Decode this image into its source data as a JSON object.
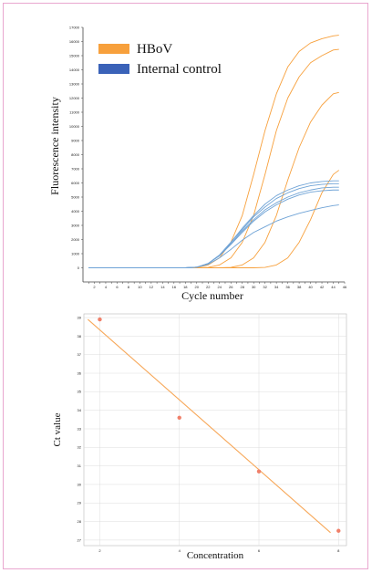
{
  "chart_data": [
    {
      "type": "line",
      "title": "",
      "xlabel": "Cycle number",
      "ylabel": "Fluorescence intensity",
      "xlim": [
        0,
        46
      ],
      "ylim": [
        -1000,
        17000
      ],
      "x_ticks": [
        1,
        2,
        3,
        4,
        5,
        6,
        7,
        8,
        9,
        10,
        11,
        12,
        13,
        14,
        15,
        16,
        17,
        18,
        19,
        20,
        21,
        22,
        23,
        24,
        25,
        26,
        27,
        28,
        29,
        30,
        31,
        32,
        33,
        34,
        35,
        36,
        37,
        38,
        39,
        40,
        41,
        42,
        43,
        44,
        45,
        46
      ],
      "y_ticks": [
        0,
        1000,
        2000,
        3000,
        4000,
        5000,
        6000,
        7000,
        8000,
        9000,
        10000,
        11000,
        12000,
        13000,
        14000,
        15000,
        16000,
        17000
      ],
      "x_tick_labels": [
        "2",
        "4",
        "6",
        "8",
        "10",
        "12",
        "14",
        "16",
        "18",
        "20",
        "22",
        "24",
        "26",
        "28",
        "30",
        "32",
        "34",
        "36",
        "38",
        "40",
        "42",
        "44",
        "46"
      ],
      "y_tick_labels": [
        "0",
        "1000",
        "2000",
        "3000",
        "4000",
        "5000",
        "6000",
        "7000",
        "8000",
        "9000",
        "10000",
        "11000",
        "12000",
        "13000",
        "14000",
        "15000",
        "16000",
        "17000"
      ],
      "legend_position": "top-left",
      "legend": [
        {
          "label": "HBoV",
          "color": "#f7a03c"
        },
        {
          "label": "Internal control",
          "color": "#3a62b8"
        }
      ],
      "series": [
        {
          "group": "HBoV",
          "color": "#f7a03c",
          "x": [
            1,
            18,
            20,
            22,
            24,
            26,
            28,
            30,
            32,
            34,
            36,
            38,
            40,
            42,
            44,
            45
          ],
          "y": [
            0,
            0,
            30,
            200,
            700,
            1800,
            3700,
            6600,
            9700,
            12300,
            14200,
            15300,
            15900,
            16200,
            16400,
            16450
          ]
        },
        {
          "group": "HBoV",
          "color": "#f7a03c",
          "x": [
            1,
            20,
            22,
            24,
            26,
            28,
            30,
            32,
            34,
            36,
            38,
            40,
            42,
            44,
            45
          ],
          "y": [
            0,
            0,
            30,
            200,
            700,
            1800,
            3700,
            6600,
            9700,
            12000,
            13500,
            14500,
            15000,
            15400,
            15450
          ]
        },
        {
          "group": "HBoV",
          "color": "#f7a03c",
          "x": [
            1,
            24,
            26,
            28,
            30,
            32,
            34,
            36,
            38,
            40,
            42,
            44,
            45
          ],
          "y": [
            0,
            0,
            30,
            200,
            700,
            1800,
            3700,
            6200,
            8500,
            10300,
            11500,
            12300,
            12400
          ]
        },
        {
          "group": "HBoV",
          "color": "#f7a03c",
          "x": [
            1,
            30,
            32,
            34,
            36,
            38,
            40,
            42,
            44,
            45
          ],
          "y": [
            0,
            0,
            30,
            200,
            700,
            1800,
            3400,
            5300,
            6600,
            6900
          ]
        },
        {
          "group": "Internal control",
          "color": "#6fa3d6",
          "x": [
            1,
            18,
            20,
            22,
            24,
            26,
            28,
            30,
            32,
            34,
            36,
            38,
            40,
            42,
            44,
            45
          ],
          "y": [
            0,
            0,
            40,
            300,
            900,
            1800,
            2800,
            3700,
            4500,
            5100,
            5500,
            5800,
            6000,
            6100,
            6150,
            6150
          ]
        },
        {
          "group": "Internal control",
          "color": "#6fa3d6",
          "x": [
            1,
            18,
            20,
            22,
            24,
            26,
            28,
            30,
            32,
            34,
            36,
            38,
            40,
            42,
            44,
            45
          ],
          "y": [
            0,
            0,
            40,
            300,
            900,
            1800,
            2700,
            3600,
            4300,
            4900,
            5300,
            5600,
            5800,
            5900,
            5950,
            5950
          ]
        },
        {
          "group": "Internal control",
          "color": "#6fa3d6",
          "x": [
            1,
            18,
            20,
            22,
            24,
            26,
            28,
            30,
            32,
            34,
            36,
            38,
            40,
            42,
            44,
            45
          ],
          "y": [
            0,
            0,
            40,
            300,
            900,
            1700,
            2600,
            3400,
            4100,
            4600,
            5000,
            5300,
            5500,
            5650,
            5700,
            5700
          ]
        },
        {
          "group": "Internal control",
          "color": "#6fa3d6",
          "x": [
            1,
            18,
            20,
            22,
            24,
            26,
            28,
            30,
            32,
            34,
            36,
            38,
            40,
            42,
            44,
            45
          ],
          "y": [
            0,
            0,
            40,
            300,
            850,
            1650,
            2500,
            3300,
            3950,
            4450,
            4850,
            5150,
            5350,
            5450,
            5500,
            5500
          ]
        },
        {
          "group": "Internal control",
          "color": "#6fa3d6",
          "x": [
            1,
            18,
            20,
            22,
            24,
            26,
            28,
            30,
            32,
            34,
            36,
            38,
            40,
            42,
            44,
            45
          ],
          "y": [
            0,
            0,
            40,
            250,
            700,
            1300,
            1950,
            2500,
            2900,
            3300,
            3600,
            3850,
            4050,
            4250,
            4400,
            4450
          ]
        }
      ]
    },
    {
      "type": "scatter",
      "title": "",
      "xlabel": "Concentration",
      "ylabel": "Ct value",
      "xlim": [
        1.6,
        8.2
      ],
      "ylim": [
        26.7,
        39.2
      ],
      "x_ticks": [
        2,
        4,
        6,
        8
      ],
      "y_ticks": [
        27,
        28,
        29,
        30,
        31,
        32,
        33,
        34,
        35,
        36,
        37,
        38,
        39
      ],
      "x_tick_labels": [
        "2",
        "4",
        "6",
        "8"
      ],
      "y_tick_labels": [
        "27",
        "28",
        "29",
        "30",
        "31",
        "32",
        "33",
        "34",
        "35",
        "36",
        "37",
        "38",
        "39"
      ],
      "grid": true,
      "points": {
        "x": [
          2,
          4,
          6,
          8
        ],
        "y": [
          38.9,
          33.6,
          30.7,
          27.5
        ],
        "color": "#f0806a"
      },
      "fit_line": {
        "x": [
          1.7,
          7.8
        ],
        "y": [
          38.9,
          27.4
        ],
        "color": "#f7a85a"
      }
    }
  ]
}
